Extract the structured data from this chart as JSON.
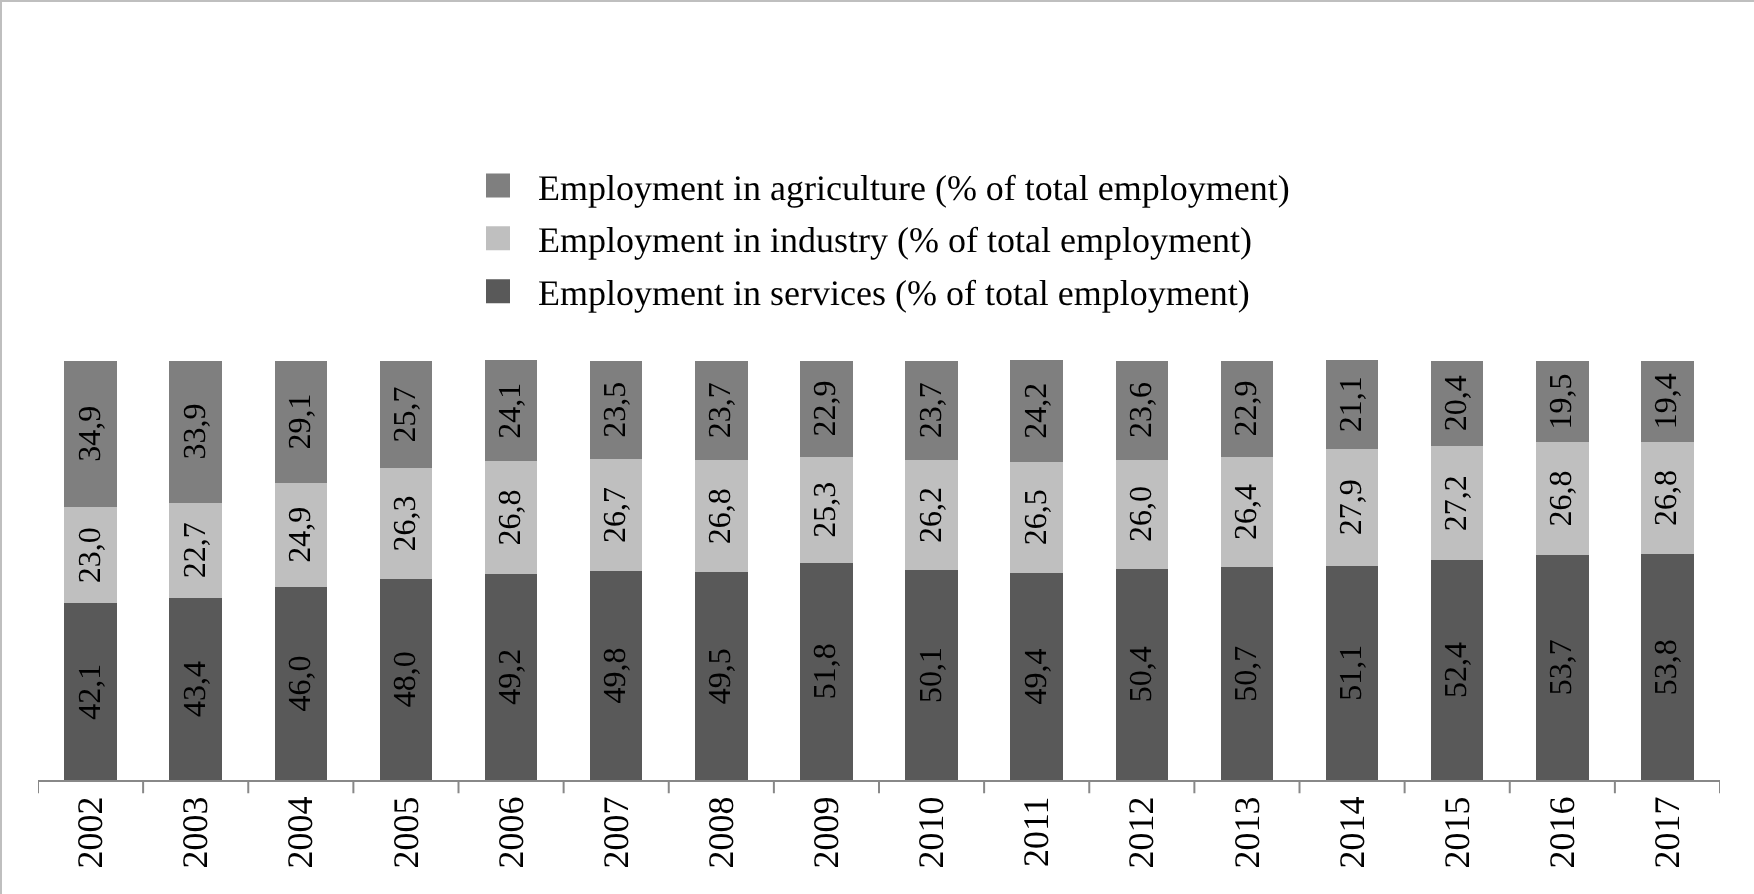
{
  "chart_data": {
    "type": "bar",
    "stacked": true,
    "legend": "top",
    "grid": false,
    "categories": [
      "2002",
      "2003",
      "2004",
      "2005",
      "2006",
      "2007",
      "2008",
      "2009",
      "2010",
      "2011",
      "2012",
      "2013",
      "2014",
      "2015",
      "2016",
      "2017"
    ],
    "series": [
      {
        "name": "Employment in services (% of total employment)",
        "color": "#595959",
        "values": [
          42.1,
          43.4,
          46.0,
          48.0,
          49.2,
          49.8,
          49.5,
          51.8,
          50.1,
          49.4,
          50.4,
          50.7,
          51.1,
          52.4,
          53.7,
          53.8
        ],
        "value_labels": [
          "42,1",
          "43,4",
          "46,0",
          "48,0",
          "49,2",
          "49,8",
          "49,5",
          "51,8",
          "50,1",
          "49,4",
          "50,4",
          "50,7",
          "51,1",
          "52,4",
          "53,7",
          "53,8"
        ]
      },
      {
        "name": "Employment in industry (% of total employment)",
        "color": "#bfbfbf",
        "values": [
          23.0,
          22.7,
          24.9,
          26.3,
          26.8,
          26.7,
          26.8,
          25.3,
          26.2,
          26.5,
          26.0,
          26.4,
          27.9,
          27.2,
          26.8,
          26.8
        ],
        "value_labels": [
          "23,0",
          "22,7",
          "24,9",
          "26,3",
          "26,8",
          "26,7",
          "26,8",
          "25,3",
          "26,2",
          "26,5",
          "26,0",
          "26,4",
          "27,9",
          "27,2",
          "26,8",
          "26,8"
        ]
      },
      {
        "name": "Employment in agriculture (% of total employment)",
        "color": "#7f7f7f",
        "values": [
          34.9,
          33.9,
          29.1,
          25.7,
          24.1,
          23.5,
          23.7,
          22.9,
          23.7,
          24.2,
          23.6,
          22.9,
          21.1,
          20.4,
          19.5,
          19.4
        ],
        "value_labels": [
          "34,9",
          "33,9",
          "29,1",
          "25,7",
          "24,1",
          "23,5",
          "23,7",
          "22,9",
          "23,7",
          "24,2",
          "23,6",
          "22,9",
          "21,1",
          "20,4",
          "19,5",
          "19,4"
        ]
      }
    ]
  }
}
